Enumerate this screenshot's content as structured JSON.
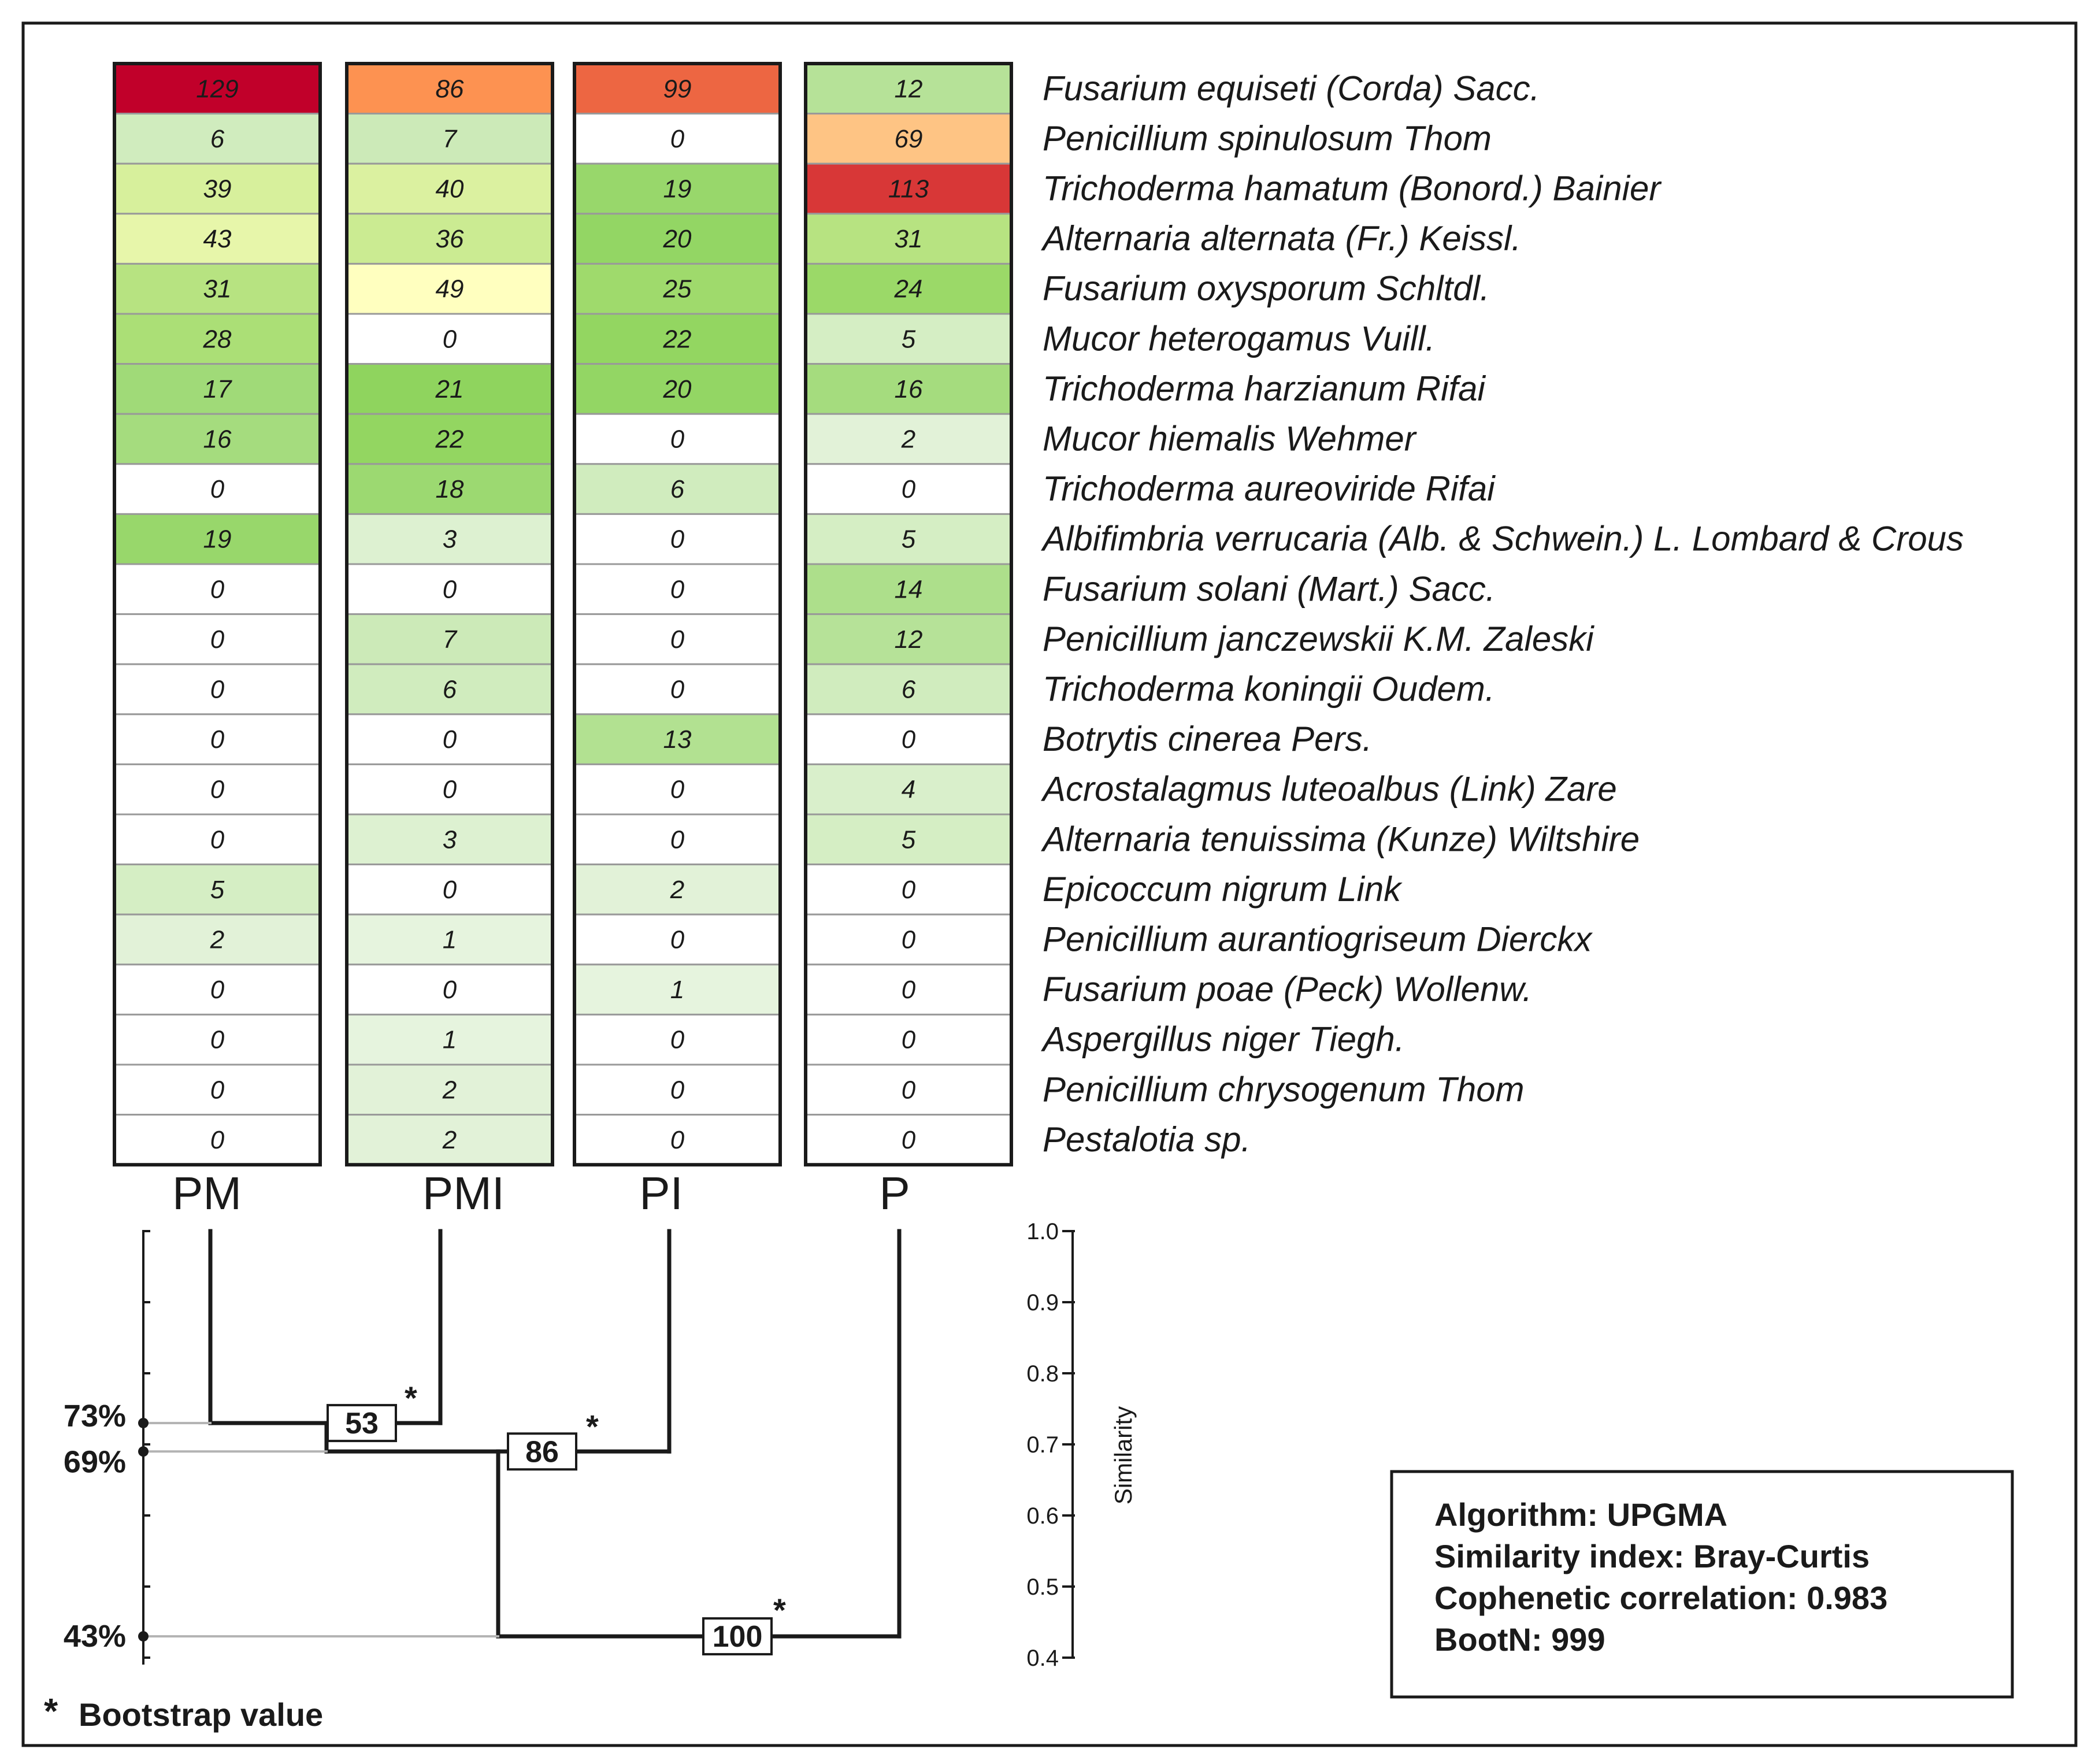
{
  "chart_data": [
    {
      "type": "heatmap",
      "columns": [
        "PM",
        "PMI",
        "PI",
        "P"
      ],
      "rows": [
        "Fusarium equiseti (Corda) Sacc.",
        "Penicillium spinulosum Thom",
        "Trichoderma hamatum (Bonord.) Bainier",
        "Alternaria alternata (Fr.) Keissl.",
        "Fusarium oxysporum Schltdl.",
        "Mucor heterogamus Vuill.",
        "Trichoderma harzianum Rifai",
        "Mucor hiemalis Wehmer",
        "Trichoderma aureoviride Rifai",
        "Albifimbria verrucaria (Alb. & Schwein.) L. Lombard & Crous",
        "Fusarium solani (Mart.) Sacc.",
        "Penicillium janczewskii  K.M. Zaleski",
        "Trichoderma koningii Oudem.",
        "Botrytis cinerea Pers.",
        "Acrostalagmus luteoalbus (Link) Zare",
        "Alternaria tenuissima (Kunze) Wiltshire",
        "Epicoccum nigrum Link",
        "Penicillium aurantiogriseum Dierckx",
        "Fusarium poae (Peck) Wollenw.",
        "Aspergillus niger Tiegh.",
        "Penicillium chrysogenum Thom",
        "Pestalotia sp."
      ],
      "values": [
        [
          129,
          86,
          99,
          12
        ],
        [
          6,
          7,
          0,
          69
        ],
        [
          39,
          40,
          19,
          113
        ],
        [
          43,
          36,
          20,
          31
        ],
        [
          31,
          49,
          25,
          24
        ],
        [
          28,
          0,
          22,
          5
        ],
        [
          17,
          21,
          20,
          16
        ],
        [
          16,
          22,
          0,
          2
        ],
        [
          0,
          18,
          6,
          0
        ],
        [
          19,
          3,
          0,
          5
        ],
        [
          0,
          0,
          0,
          14
        ],
        [
          0,
          7,
          0,
          12
        ],
        [
          0,
          6,
          0,
          6
        ],
        [
          0,
          0,
          13,
          0
        ],
        [
          0,
          0,
          0,
          4
        ],
        [
          0,
          3,
          0,
          5
        ],
        [
          5,
          0,
          2,
          0
        ],
        [
          2,
          1,
          0,
          0
        ],
        [
          0,
          0,
          1,
          0
        ],
        [
          0,
          1,
          0,
          0
        ],
        [
          0,
          2,
          0,
          0
        ],
        [
          0,
          2,
          0,
          0
        ]
      ],
      "color_scale": {
        "zero": "#ffffff",
        "low": "#e6f4de",
        "mid_low": "#8fd45e",
        "mid": "#ffffbf",
        "high": "#fd8c4b",
        "max": "#c1002a"
      }
    },
    {
      "type": "dendrogram",
      "leaves": [
        "PM",
        "PMI",
        "PI",
        "P"
      ],
      "axis": {
        "label": "Similarity",
        "ylim": [
          0.4,
          1.0
        ],
        "ticks": [
          "1.0",
          "0.9",
          "0.8",
          "0.7",
          "0.6",
          "0.5",
          "0.4"
        ]
      },
      "merges": [
        {
          "join": [
            "PM",
            "PMI"
          ],
          "similarity": 0.73,
          "bootstrap": "53",
          "level_label": "73%"
        },
        {
          "join": [
            "PM+PMI",
            "PI"
          ],
          "similarity": 0.69,
          "bootstrap": "86",
          "level_label": "69%"
        },
        {
          "join": [
            "PM+PMI+PI",
            "P"
          ],
          "similarity": 0.43,
          "bootstrap": "100",
          "level_label": "43%"
        }
      ],
      "asterisk": "*",
      "legend": "Bootstrap value"
    }
  ],
  "info_box": [
    "Algorithm: UPGMA",
    "Similarity index: Bray-Curtis",
    "Cophenetic correlation: 0.983",
    "BootN: 999"
  ],
  "colors": {
    "border": "#1a1a1a",
    "grid": "#999999",
    "tree": "#1a1a1a",
    "guide": "#b3b3b3"
  }
}
